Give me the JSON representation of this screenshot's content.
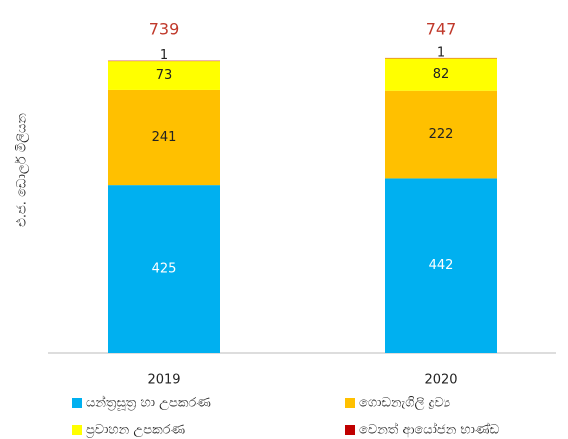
{
  "chart_data": {
    "type": "stacked_bar",
    "ylabel": "එ.ජ. ඩොලර් මිලියන",
    "categories": [
      "2019",
      "2020"
    ],
    "series": [
      {
        "name": "යන්ත්‍රසූත්‍ර හා උපකරණ",
        "color": "#00b0f0",
        "values": [
          425,
          442
        ]
      },
      {
        "name": "ගොඩනැගිලි ද්‍රව්‍ය",
        "color": "#ffc000",
        "values": [
          241,
          222
        ]
      },
      {
        "name": "ප්‍රවාහන උපකරණ",
        "color": "#ffff00",
        "values": [
          73,
          82
        ]
      },
      {
        "name": "වෙනත් ආයෝජන භාණ්ඩ",
        "color": "#c00000",
        "values": [
          1,
          1
        ]
      }
    ],
    "totals": [
      739,
      747
    ],
    "ylim": [
      0,
      800
    ]
  }
}
